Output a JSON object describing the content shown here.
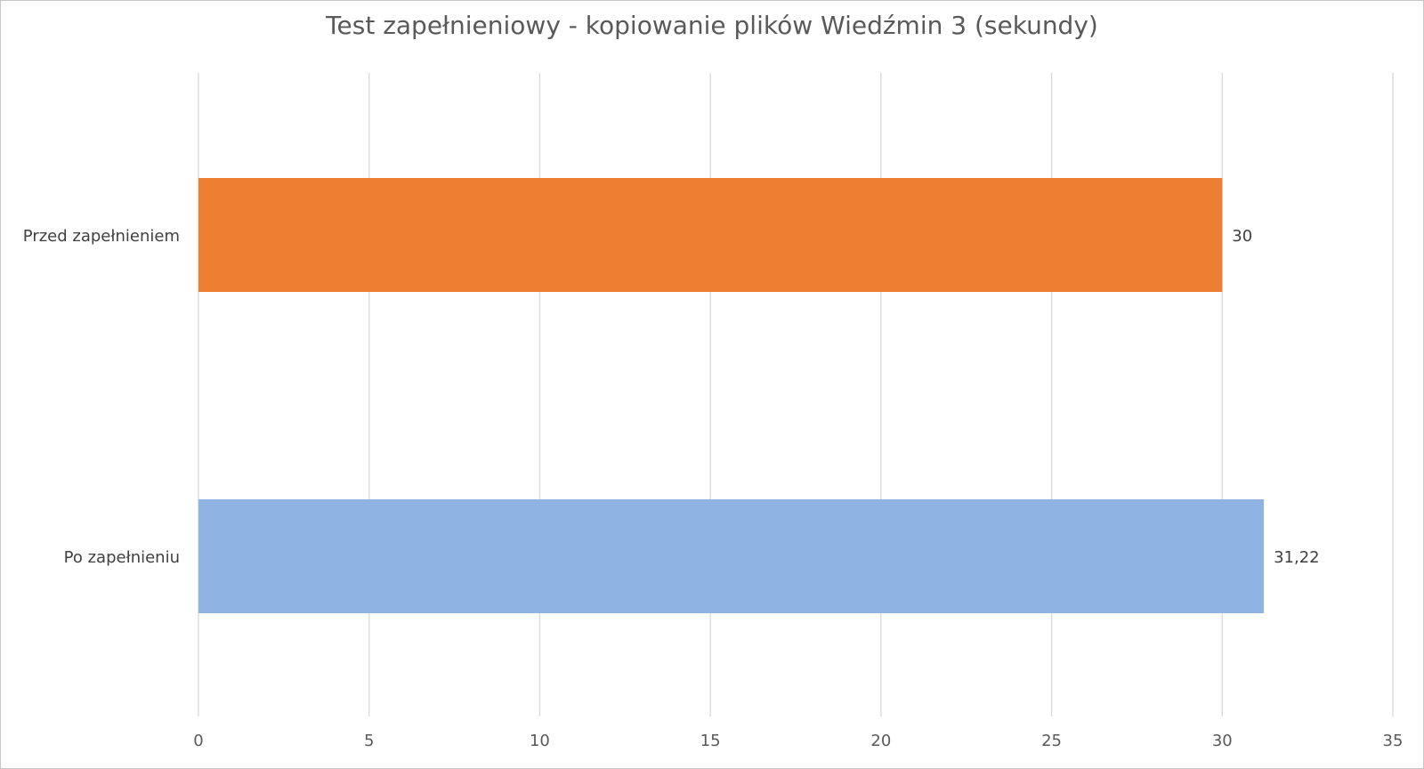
{
  "chart_data": {
    "type": "bar",
    "orientation": "horizontal",
    "title": "Test zapełnieniowy - kopiowanie plików Wiedźmin 3 (sekundy)",
    "categories": [
      "Przed zapełnieniem",
      "Po zapełnieniu"
    ],
    "values": [
      30,
      31.22
    ],
    "data_labels": [
      "30",
      "31,22"
    ],
    "bar_colors": [
      "#ed7d31",
      "#8fb4e3"
    ],
    "xlim": [
      0,
      35
    ],
    "xticks": [
      0,
      5,
      10,
      15,
      20,
      25,
      30,
      35
    ],
    "xtick_labels": [
      "0",
      "5",
      "10",
      "15",
      "20",
      "25",
      "30",
      "35"
    ],
    "xlabel": "",
    "ylabel": "",
    "grid": "vertical",
    "legend": "none"
  }
}
